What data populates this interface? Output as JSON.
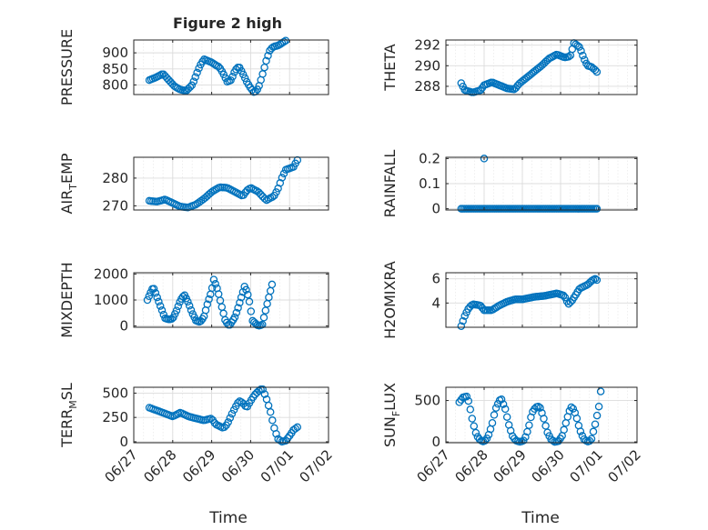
{
  "figure": {
    "title": "Figure 2 high",
    "xlabel": "Time",
    "marker_color": "#0072BD",
    "grid_color": "#dcdcdc",
    "axis_color": "#262626",
    "x_ticks": [
      "06/27",
      "06/28",
      "06/29",
      "06/30",
      "07/01",
      "07/02"
    ]
  },
  "chart_data": [
    {
      "type": "scatter",
      "ylabel_main": "PRESSURE",
      "ylabel_sub": "",
      "xlim": [
        0,
        5
      ],
      "ylim": [
        770,
        940
      ],
      "yticks": [
        800,
        850,
        900
      ],
      "ytick_labels": [
        "800",
        "850",
        "900"
      ],
      "keys": [
        [
          0.4,
          815
        ],
        [
          0.6,
          825
        ],
        [
          0.75,
          835
        ],
        [
          0.9,
          815
        ],
        [
          1.05,
          795
        ],
        [
          1.2,
          785
        ],
        [
          1.35,
          782
        ],
        [
          1.5,
          800
        ],
        [
          1.6,
          830
        ],
        [
          1.7,
          860
        ],
        [
          1.8,
          880
        ],
        [
          1.9,
          875
        ],
        [
          2.0,
          870
        ],
        [
          2.1,
          862
        ],
        [
          2.2,
          855
        ],
        [
          2.3,
          835
        ],
        [
          2.4,
          810
        ],
        [
          2.5,
          815
        ],
        [
          2.6,
          845
        ],
        [
          2.7,
          858
        ],
        [
          2.8,
          835
        ],
        [
          2.9,
          810
        ],
        [
          3.0,
          790
        ],
        [
          3.1,
          775
        ],
        [
          3.2,
          790
        ],
        [
          3.3,
          830
        ],
        [
          3.4,
          875
        ],
        [
          3.5,
          910
        ],
        [
          3.6,
          920
        ],
        [
          3.7,
          922
        ],
        [
          3.8,
          930
        ],
        [
          3.9,
          938
        ]
      ]
    },
    {
      "type": "scatter",
      "ylabel_main": "THETA",
      "ylabel_sub": "",
      "xlim": [
        0,
        5
      ],
      "ylim": [
        287.2,
        292.5
      ],
      "yticks": [
        288,
        290,
        292
      ],
      "ytick_labels": [
        "288",
        "290",
        "292"
      ],
      "keys": [
        [
          0.4,
          288.3
        ],
        [
          0.5,
          287.6
        ],
        [
          0.7,
          287.4
        ],
        [
          0.9,
          287.6
        ],
        [
          1.0,
          288.1
        ],
        [
          1.2,
          288.4
        ],
        [
          1.4,
          288.1
        ],
        [
          1.6,
          287.8
        ],
        [
          1.8,
          287.7
        ],
        [
          1.9,
          288.2
        ],
        [
          2.1,
          288.8
        ],
        [
          2.3,
          289.4
        ],
        [
          2.5,
          290.0
        ],
        [
          2.7,
          290.7
        ],
        [
          2.9,
          291.1
        ],
        [
          3.1,
          290.8
        ],
        [
          3.25,
          290.9
        ],
        [
          3.35,
          292.2
        ],
        [
          3.5,
          291.8
        ],
        [
          3.6,
          290.8
        ],
        [
          3.7,
          290.0
        ],
        [
          3.8,
          289.9
        ],
        [
          3.9,
          289.6
        ],
        [
          3.95,
          289.4
        ]
      ]
    },
    {
      "type": "scatter",
      "ylabel_main": "AIR",
      "ylabel_sub": "T",
      "ylabel_after": "EMP",
      "xlim": [
        0,
        5
      ],
      "ylim": [
        268.5,
        287.5
      ],
      "yticks": [
        270,
        280
      ],
      "ytick_labels": [
        "270",
        "280"
      ],
      "keys": [
        [
          0.4,
          271.8
        ],
        [
          0.6,
          271.5
        ],
        [
          0.8,
          272.3
        ],
        [
          1.0,
          271.0
        ],
        [
          1.2,
          269.7
        ],
        [
          1.4,
          269.4
        ],
        [
          1.6,
          270.5
        ],
        [
          1.8,
          272.5
        ],
        [
          2.0,
          275.0
        ],
        [
          2.2,
          276.7
        ],
        [
          2.4,
          276.5
        ],
        [
          2.6,
          275.0
        ],
        [
          2.8,
          273.5
        ],
        [
          2.9,
          275.5
        ],
        [
          3.0,
          276.5
        ],
        [
          3.2,
          275.0
        ],
        [
          3.4,
          272.0
        ],
        [
          3.6,
          273.5
        ],
        [
          3.7,
          276.0
        ],
        [
          3.8,
          280.0
        ],
        [
          3.9,
          283.0
        ],
        [
          4.0,
          283.5
        ],
        [
          4.1,
          284.0
        ],
        [
          4.2,
          286.5
        ]
      ]
    },
    {
      "type": "scatter",
      "ylabel_main": "RAINFALL",
      "ylabel_sub": "",
      "xlim": [
        0,
        5
      ],
      "ylim": [
        -0.005,
        0.205
      ],
      "yticks": [
        0,
        0.1,
        0.2
      ],
      "ytick_labels": [
        "0",
        "0.1",
        "0.2"
      ],
      "keys": [
        [
          0.4,
          0
        ],
        [
          3.95,
          0
        ]
      ],
      "extra_points": [
        [
          1.0,
          0.2
        ]
      ]
    },
    {
      "type": "scatter",
      "ylabel_main": "MIXDEPTH",
      "ylabel_sub": "",
      "xlim": [
        0,
        5
      ],
      "ylim": [
        -50,
        2050
      ],
      "yticks": [
        0,
        1000,
        2000
      ],
      "ytick_labels": [
        "0",
        "1000",
        "2000"
      ],
      "keys": [
        [
          0.35,
          1000
        ],
        [
          0.45,
          1350
        ],
        [
          0.5,
          1500
        ],
        [
          0.6,
          1100
        ],
        [
          0.7,
          700
        ],
        [
          0.8,
          300
        ],
        [
          0.9,
          250
        ],
        [
          1.0,
          280
        ],
        [
          1.1,
          600
        ],
        [
          1.2,
          1000
        ],
        [
          1.3,
          1200
        ],
        [
          1.4,
          900
        ],
        [
          1.5,
          500
        ],
        [
          1.6,
          200
        ],
        [
          1.7,
          150
        ],
        [
          1.8,
          350
        ],
        [
          1.9,
          900
        ],
        [
          2.0,
          1350
        ],
        [
          2.05,
          1800
        ],
        [
          2.15,
          1400
        ],
        [
          2.25,
          800
        ],
        [
          2.35,
          200
        ],
        [
          2.45,
          0
        ],
        [
          2.6,
          350
        ],
        [
          2.7,
          800
        ],
        [
          2.8,
          1300
        ],
        [
          2.85,
          1550
        ],
        [
          2.95,
          1100
        ],
        [
          3.05,
          200
        ],
        [
          3.2,
          0
        ],
        [
          3.3,
          50
        ],
        [
          3.4,
          700
        ],
        [
          3.5,
          1300
        ],
        [
          3.55,
          1600
        ]
      ]
    },
    {
      "type": "scatter",
      "ylabel_main": "H2OMIXRA",
      "ylabel_sub": "",
      "xlim": [
        0,
        5
      ],
      "ylim": [
        2.0,
        6.5
      ],
      "yticks": [
        4,
        6
      ],
      "ytick_labels": [
        "4",
        "6"
      ],
      "keys": [
        [
          0.4,
          2.1
        ],
        [
          0.5,
          3.0
        ],
        [
          0.6,
          3.6
        ],
        [
          0.7,
          3.9
        ],
        [
          0.9,
          3.8
        ],
        [
          1.0,
          3.4
        ],
        [
          1.2,
          3.4
        ],
        [
          1.4,
          3.8
        ],
        [
          1.6,
          4.1
        ],
        [
          1.8,
          4.3
        ],
        [
          2.0,
          4.3
        ],
        [
          2.3,
          4.5
        ],
        [
          2.6,
          4.6
        ],
        [
          2.9,
          4.8
        ],
        [
          3.1,
          4.6
        ],
        [
          3.2,
          3.9
        ],
        [
          3.3,
          4.2
        ],
        [
          3.4,
          4.7
        ],
        [
          3.5,
          5.2
        ],
        [
          3.7,
          5.5
        ],
        [
          3.8,
          5.8
        ],
        [
          3.9,
          6.0
        ],
        [
          3.95,
          5.9
        ]
      ]
    },
    {
      "type": "scatter",
      "ylabel_main": "TERR",
      "ylabel_sub": "M",
      "ylabel_after": "SL",
      "xlim": [
        0,
        5
      ],
      "ylim": [
        -10,
        560
      ],
      "yticks": [
        0,
        250,
        500
      ],
      "ytick_labels": [
        "0",
        "250",
        "500"
      ],
      "keys": [
        [
          0.4,
          350
        ],
        [
          0.6,
          320
        ],
        [
          0.8,
          290
        ],
        [
          1.0,
          260
        ],
        [
          1.2,
          300
        ],
        [
          1.4,
          260
        ],
        [
          1.6,
          240
        ],
        [
          1.8,
          220
        ],
        [
          2.0,
          240
        ],
        [
          2.1,
          180
        ],
        [
          2.2,
          160
        ],
        [
          2.3,
          140
        ],
        [
          2.4,
          180
        ],
        [
          2.5,
          270
        ],
        [
          2.6,
          350
        ],
        [
          2.7,
          420
        ],
        [
          2.8,
          400
        ],
        [
          2.9,
          350
        ],
        [
          3.0,
          420
        ],
        [
          3.1,
          480
        ],
        [
          3.2,
          520
        ],
        [
          3.3,
          550
        ],
        [
          3.4,
          450
        ],
        [
          3.5,
          320
        ],
        [
          3.6,
          150
        ],
        [
          3.7,
          30
        ],
        [
          3.8,
          0
        ],
        [
          3.9,
          10
        ],
        [
          4.0,
          60
        ],
        [
          4.1,
          120
        ],
        [
          4.2,
          150
        ]
      ]
    },
    {
      "type": "scatter",
      "ylabel_main": "SUN",
      "ylabel_sub": "F",
      "ylabel_after": "LUX",
      "xlim": [
        0,
        5
      ],
      "ylim": [
        -10,
        660
      ],
      "yticks": [
        0,
        500
      ],
      "ytick_labels": [
        "0",
        "500"
      ],
      "keys": [
        [
          0.35,
          480
        ],
        [
          0.45,
          540
        ],
        [
          0.55,
          550
        ],
        [
          0.6,
          480
        ],
        [
          0.7,
          250
        ],
        [
          0.8,
          80
        ],
        [
          0.9,
          20
        ],
        [
          1.0,
          0
        ],
        [
          1.1,
          60
        ],
        [
          1.2,
          200
        ],
        [
          1.3,
          400
        ],
        [
          1.4,
          500
        ],
        [
          1.45,
          520
        ],
        [
          1.55,
          400
        ],
        [
          1.65,
          200
        ],
        [
          1.75,
          60
        ],
        [
          1.85,
          10
        ],
        [
          1.95,
          0
        ],
        [
          2.05,
          20
        ],
        [
          2.15,
          150
        ],
        [
          2.25,
          350
        ],
        [
          2.35,
          420
        ],
        [
          2.45,
          430
        ],
        [
          2.55,
          300
        ],
        [
          2.65,
          120
        ],
        [
          2.75,
          30
        ],
        [
          2.85,
          0
        ],
        [
          2.95,
          10
        ],
        [
          3.05,
          80
        ],
        [
          3.15,
          250
        ],
        [
          3.25,
          400
        ],
        [
          3.3,
          430
        ],
        [
          3.4,
          330
        ],
        [
          3.5,
          150
        ],
        [
          3.6,
          40
        ],
        [
          3.7,
          0
        ],
        [
          3.8,
          20
        ],
        [
          3.9,
          200
        ],
        [
          4.0,
          420
        ],
        [
          4.05,
          610
        ]
      ]
    }
  ]
}
